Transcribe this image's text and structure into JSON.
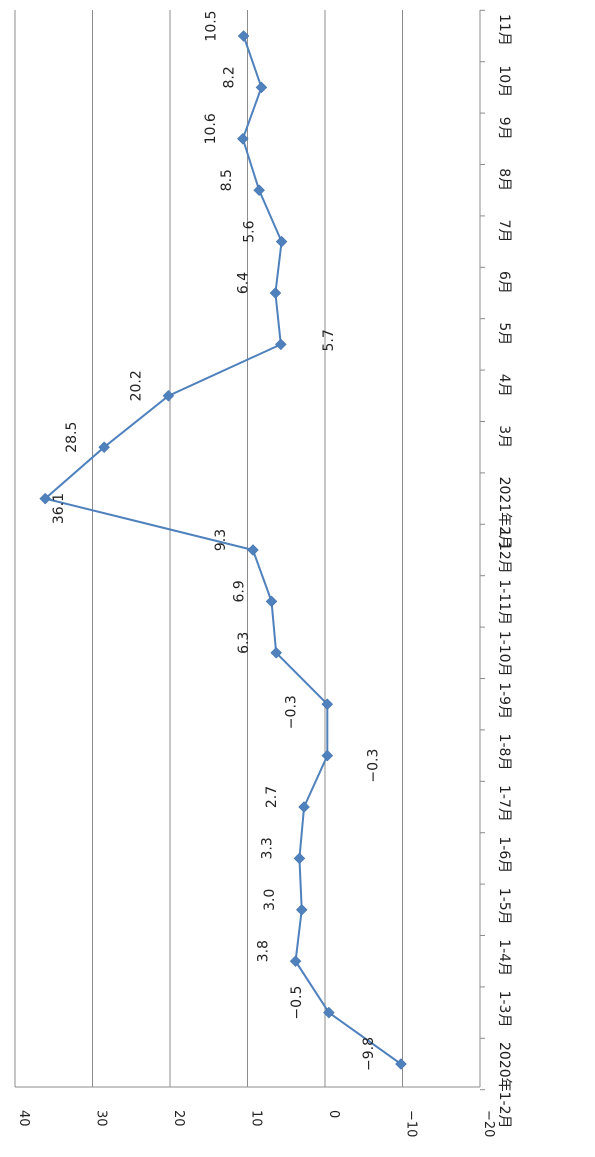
{
  "chart_data": {
    "type": "line",
    "orientation": "rotated-90-clockwise",
    "title": "",
    "xlabel": "",
    "ylabel": "",
    "ylim": [
      -20,
      40
    ],
    "yticks": [
      -20,
      -10,
      0,
      10,
      20,
      30,
      40
    ],
    "ytick_labels": [
      "−20",
      "−10",
      "0",
      "10",
      "20",
      "30",
      "40"
    ],
    "grid": true,
    "legend": "none",
    "categories": [
      "2020年1-2月",
      "1-3月",
      "1-4月",
      "1-5月",
      "1-6月",
      "1-7月",
      "1-8月",
      "1-9月",
      "1-10月",
      "1-11月",
      "1-12月",
      "2021年2月",
      "3月",
      "4月",
      "5月",
      "6月",
      "7月",
      "8月",
      "9月",
      "10月",
      "11月"
    ],
    "series": [
      {
        "values": [
          -9.8,
          -0.5,
          3.8,
          3.0,
          3.3,
          2.7,
          -0.3,
          -0.3,
          6.3,
          6.9,
          9.3,
          36.1,
          28.5,
          20.2,
          5.7,
          6.4,
          5.6,
          8.5,
          10.6,
          8.2,
          10.5
        ],
        "labels": [
          "−9.8",
          "−0.5",
          "3.8",
          "3.0",
          "3.3",
          "2.7",
          "−0.3",
          "−0.3",
          "6.3",
          "6.9",
          "9.3",
          "36.1",
          "28.5",
          "20.2",
          "5.7",
          "6.4",
          "5.6",
          "8.5",
          "10.6",
          "8.2",
          "10.5"
        ],
        "color": "#4f81bd"
      }
    ]
  }
}
